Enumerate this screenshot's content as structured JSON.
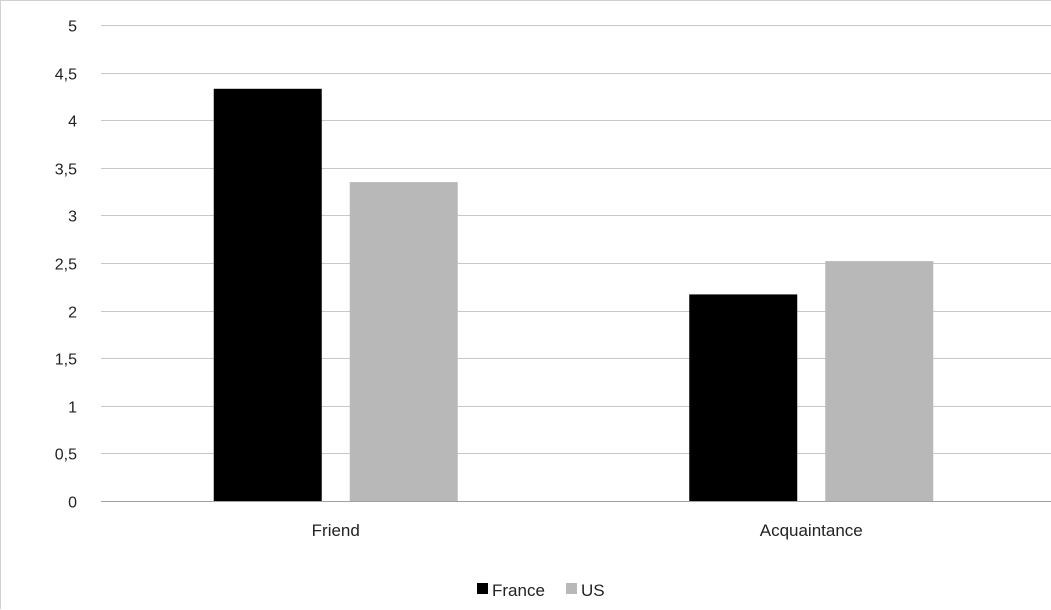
{
  "chart_data": {
    "type": "bar",
    "categories": [
      "Friend",
      "Acquaintance"
    ],
    "series": [
      {
        "name": "France",
        "values": [
          4.33,
          2.17
        ],
        "color": "#000000"
      },
      {
        "name": "US",
        "values": [
          3.35,
          2.52
        ],
        "color": "#b8b8b8"
      }
    ],
    "title": "",
    "xlabel": "",
    "ylabel": "",
    "ylim": [
      0,
      5
    ],
    "yticks": [
      "0",
      "0,5",
      "1",
      "1,5",
      "2",
      "2,5",
      "3",
      "3,5",
      "4",
      "4,5",
      "5"
    ],
    "ytick_values": [
      0,
      0.5,
      1,
      1.5,
      2,
      2.5,
      3,
      3.5,
      4,
      4.5,
      5
    ],
    "grid": true,
    "legend_position": "bottom-center",
    "gridline_color": "#c8c8c8",
    "axis_color": "#a0a0a0"
  }
}
